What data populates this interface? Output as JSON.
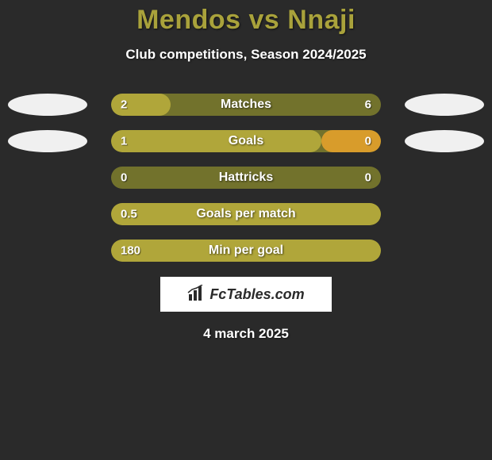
{
  "background_color": "#2a2a2a",
  "header": {
    "player1": "Mendos",
    "vs": "vs",
    "player2": "Nnaji",
    "title_color": "#a9a23b",
    "title_fontsize": 34,
    "subtitle": "Club competitions, Season 2024/2025"
  },
  "oval_color": "#f0f0f0",
  "bars": {
    "track_color": "#72722c",
    "fill_color": "#b0a63a",
    "height": 28,
    "radius": 14
  },
  "rows": [
    {
      "label": "Matches",
      "left_value": "2",
      "right_value": "6",
      "left_num": 2,
      "right_num": 6,
      "show_ovals": true,
      "left_fill_pct": 22,
      "right_fill_pct": 0,
      "full_fill": false
    },
    {
      "label": "Goals",
      "left_value": "1",
      "right_value": "0",
      "left_num": 1,
      "right_num": 0,
      "show_ovals": true,
      "left_fill_pct": 78,
      "right_fill_pct": 22,
      "full_fill": false,
      "right_fill_color": "#d89c2b"
    },
    {
      "label": "Hattricks",
      "left_value": "0",
      "right_value": "0",
      "left_num": 0,
      "right_num": 0,
      "show_ovals": false,
      "left_fill_pct": 0,
      "right_fill_pct": 0,
      "full_fill": false
    },
    {
      "label": "Goals per match",
      "left_value": "0.5",
      "right_value": "",
      "left_num": 0.5,
      "right_num": 0,
      "show_ovals": false,
      "left_fill_pct": 100,
      "right_fill_pct": 0,
      "full_fill": true
    },
    {
      "label": "Min per goal",
      "left_value": "180",
      "right_value": "",
      "left_num": 180,
      "right_num": 0,
      "show_ovals": false,
      "left_fill_pct": 100,
      "right_fill_pct": 0,
      "full_fill": true
    }
  ],
  "brand": {
    "text": "FcTables.com",
    "box_bg": "#ffffff",
    "text_color": "#2a2a2a",
    "icon_name": "bar-chart-icon"
  },
  "date": "4 march 2025"
}
